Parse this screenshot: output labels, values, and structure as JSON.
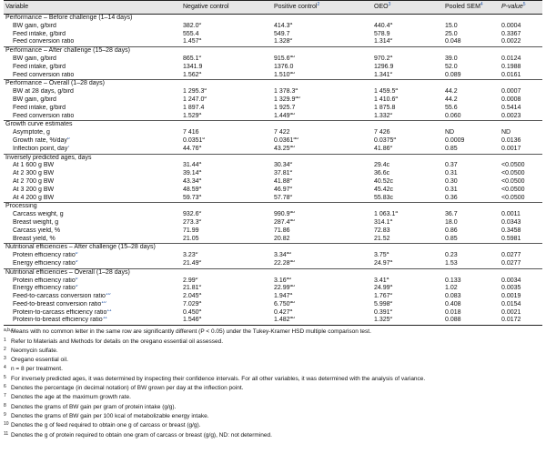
{
  "header": {
    "variable": "Variable",
    "neg": "Negative control",
    "pos": "Positive control",
    "pos_ref": "2",
    "oeo": "OEO",
    "oeo_ref": "3",
    "sem": "Pooled SEM",
    "sem_ref": "4",
    "p": "P-value",
    "p_ref": "5"
  },
  "rows": [
    {
      "type": "section",
      "label": "Performance – Before challenge (1–14 days)"
    },
    {
      "label": "BW gain, g/bird",
      "neg": "382.0",
      "neg_s": "b",
      "pos": "414.3",
      "pos_s": "a",
      "oeo": "440.4",
      "oeo_s": "a",
      "sem": "15.0",
      "p": "0.0004"
    },
    {
      "label": "Feed intake, g/bird",
      "neg": "555.4",
      "pos": "549.7",
      "oeo": "578.9",
      "sem": "25.0",
      "p": "0.3367"
    },
    {
      "label": "Feed conversion ratio",
      "neg": "1.457",
      "neg_s": "a",
      "pos": "1.328",
      "pos_s": "b",
      "oeo": "1.314",
      "oeo_s": "b",
      "sem": "0.048",
      "p": "0.0022"
    },
    {
      "type": "section",
      "label": "Performance – After challenge (15–28 days)"
    },
    {
      "label": "BW gain, g/bird",
      "neg": "865.1",
      "neg_s": "b",
      "pos": "915.6",
      "pos_s": "ab",
      "oeo": "970.2",
      "oeo_s": "a",
      "sem": "39.0",
      "p": "0.0124"
    },
    {
      "label": "Feed intake, g/bird",
      "neg": "1341.9",
      "pos": "1376.0",
      "oeo": "1296.9",
      "sem": "52.0",
      "p": "0.1988"
    },
    {
      "label": "Feed conversion ratio",
      "neg": "1.562",
      "neg_s": "a",
      "pos": "1.510",
      "pos_s": "ab",
      "oeo": "1.341",
      "oeo_s": "b",
      "sem": "0.089",
      "p": "0.0161"
    },
    {
      "type": "section",
      "label": "Performance – Overall (1–28 days)"
    },
    {
      "label": "BW at 28 days, g/bird",
      "neg": "1 295.3",
      "neg_s": "b",
      "pos": "1 378.3",
      "pos_s": "a",
      "oeo": "1 459.5",
      "oeo_s": "a",
      "sem": "44.2",
      "p": "0.0007"
    },
    {
      "label": "BW gain, g/bird",
      "neg": "1 247.0",
      "neg_s": "b",
      "pos": "1 329.9",
      "pos_s": "ab",
      "oeo": "1 410.6",
      "oeo_s": "a",
      "sem": "44.2",
      "p": "0.0008"
    },
    {
      "label": "Feed intake, g/bird",
      "neg": "1 897.4",
      "pos": "1 925.7",
      "oeo": "1 875.8",
      "sem": "55.6",
      "p": "0.5414"
    },
    {
      "label": "Feed conversion ratio",
      "neg": "1.529",
      "neg_s": "a",
      "pos": "1.449",
      "pos_s": "ab",
      "oeo": "1.332",
      "oeo_s": "b",
      "sem": "0.060",
      "p": "0.0023"
    },
    {
      "type": "section",
      "label": "Growth curve estimates"
    },
    {
      "label": "Asymptote, g",
      "neg": "7 416",
      "pos": "7 422",
      "oeo": "7 426",
      "sem": "ND",
      "p": "ND"
    },
    {
      "label": "Growth rate, %/day",
      "ref": "6",
      "neg": "0.0351",
      "neg_s": "b",
      "pos": "0.0361",
      "pos_s": "ab",
      "oeo": "0.0375",
      "oeo_s": "a",
      "sem": "0.0009",
      "p": "0.0136"
    },
    {
      "label": "Inflection point, day",
      "ref": "7",
      "neg": "44.76",
      "neg_s": "a",
      "pos": "43.25",
      "pos_s": "ab",
      "oeo": "41.86",
      "oeo_s": "b",
      "sem": "0.85",
      "p": "0.0017"
    },
    {
      "type": "section",
      "label": "Inversely predicted ages, days"
    },
    {
      "label": "At 1 600 g BW",
      "neg": "31.44",
      "neg_s": "a",
      "pos": "30.34",
      "pos_s": "b",
      "oeo": "29.4c",
      "sem": "0.37",
      "p": "<0.0500"
    },
    {
      "label": "At 2 300 g BW",
      "neg": "39.14",
      "neg_s": "a",
      "pos": "37.81",
      "pos_s": "b",
      "oeo": "36.6c",
      "sem": "0.31",
      "p": "<0.0500"
    },
    {
      "label": "At 2 700 g BW",
      "neg": "43.34",
      "neg_s": "a",
      "pos": "41.88",
      "pos_s": "b",
      "oeo": "40.52c",
      "sem": "0.30",
      "p": "<0.0500"
    },
    {
      "label": "At 3 200 g BW",
      "neg": "48.59",
      "neg_s": "a",
      "pos": "46.97",
      "pos_s": "b",
      "oeo": "45.42c",
      "sem": "0.31",
      "p": "<0.0500"
    },
    {
      "label": "At 4 200 g BW",
      "neg": "59.73",
      "neg_s": "a",
      "pos": "57.78",
      "pos_s": "b",
      "oeo": "55.83c",
      "sem": "0.36",
      "p": "<0.0500"
    },
    {
      "type": "section",
      "label": "Processing"
    },
    {
      "label": "Carcass weight, g",
      "neg": "932.6",
      "neg_s": "b",
      "pos": "990.9",
      "pos_s": "ab",
      "oeo": "1 063.1",
      "oeo_s": "a",
      "sem": "36.7",
      "p": "0.0011"
    },
    {
      "label": "Breast weight, g",
      "neg": "273.3",
      "neg_s": "b",
      "pos": "287.4",
      "pos_s": "ab",
      "oeo": "314.1",
      "oeo_s": "a",
      "sem": "18.0",
      "p": "0.0343"
    },
    {
      "label": "Carcass yield, %",
      "neg": "71.99",
      "pos": "71.86",
      "oeo": "72.83",
      "sem": "0.86",
      "p": "0.3458"
    },
    {
      "label": "Breast yield, %",
      "neg": "21.05",
      "pos": "20.82",
      "oeo": "21.52",
      "sem": "0.85",
      "p": "0.5981"
    },
    {
      "type": "section",
      "label": "Nutritional efficiencies – After challenge (15–28 days)"
    },
    {
      "label": "Protein efficiency ratio",
      "ref": "8",
      "neg": "3.23",
      "neg_s": "b",
      "pos": "3.34",
      "pos_s": "ab",
      "oeo": "3.75",
      "oeo_s": "a",
      "sem": "0.23",
      "p": "0.0277"
    },
    {
      "label": "Energy efficiency ratio",
      "ref": "9",
      "neg": "21.49",
      "neg_s": "b",
      "pos": "22.28",
      "pos_s": "ab",
      "oeo": "24.97",
      "oeo_s": "a",
      "sem": "1.53",
      "p": "0.0277"
    },
    {
      "type": "section",
      "label": "Nutritional efficiencies – Overall (1–28 days)"
    },
    {
      "label": "Protein efficiency ratio",
      "ref": "8",
      "neg": "2.99",
      "neg_s": "b",
      "pos": "3.16",
      "pos_s": "ab",
      "oeo": "3.41",
      "oeo_s": "a",
      "sem": "0.133",
      "p": "0.0034"
    },
    {
      "label": "Energy efficiency ratio",
      "ref": "9",
      "neg": "21.81",
      "neg_s": "b",
      "pos": "22.99",
      "pos_s": "ab",
      "oeo": "24.99",
      "oeo_s": "a",
      "sem": "1.02",
      "p": "0.0035"
    },
    {
      "label": "Feed-to-carcass conversion ratio",
      "ref": "10",
      "neg": "2.045",
      "neg_s": "a",
      "pos": "1.947",
      "pos_s": "a",
      "oeo": "1.767",
      "oeo_s": "b",
      "sem": "0.083",
      "p": "0.0019"
    },
    {
      "label": "Feed-to-breast conversion ratio",
      "ref": "10",
      "neg": "7.029",
      "neg_s": "a",
      "pos": "6.750",
      "pos_s": "ab",
      "oeo": "5.998",
      "oeo_s": "b",
      "sem": "0.408",
      "p": "0.0154"
    },
    {
      "label": "Protein-to-carcass efficiency ratio",
      "ref": "11",
      "neg": "0.450",
      "neg_s": "a",
      "pos": "0.427",
      "pos_s": "a",
      "oeo": "0.391",
      "oeo_s": "b",
      "sem": "0.018",
      "p": "0.0021"
    },
    {
      "label": "Protein-to-breast efficiency ratio",
      "ref": "11",
      "neg": "1.546",
      "neg_s": "a",
      "pos": "1.482",
      "pos_s": "ab",
      "oeo": "1.325",
      "oeo_s": "b",
      "sem": "0.088",
      "p": "0.0172"
    }
  ],
  "footnotes": [
    {
      "mark": "a,b,c",
      "text": "Means with no common letter in the same row are significantly different (P < 0.05) under the Tukey-Kramer HSD multiple comparison test."
    },
    {
      "mark": "1",
      "text": "Refer to Materials and Methods for details on the oregano essential oil assessed."
    },
    {
      "mark": "2",
      "text": "Neomycin sulfate."
    },
    {
      "mark": "3",
      "text": "Oregano essential oil."
    },
    {
      "mark": "4",
      "text": "n = 8 per treatment."
    },
    {
      "mark": "5",
      "text": "For inversely predicted ages, it was determined by inspecting their confidence intervals. For all other variables, it was determined with the analysis of variance."
    },
    {
      "mark": "6",
      "text": "Denotes the percentage (in decimal notation) of BW grown per day at the inflection point."
    },
    {
      "mark": "7",
      "text": "Denotes the age at the maximum growth rate."
    },
    {
      "mark": "8",
      "text": "Denotes the grams of BW gain per gram of protein intake (g/g)."
    },
    {
      "mark": "9",
      "text": "Denotes the grams of BW gain per 100 kcal of metabolizable energy intake."
    },
    {
      "mark": "10",
      "text": "Denotes the g of feed required to obtain one g of carcass or breast (g/g)."
    },
    {
      "mark": "11",
      "text": "Denotes the g of protein required to obtain one gram of carcass or breast (g/g), ND: not determined."
    }
  ]
}
